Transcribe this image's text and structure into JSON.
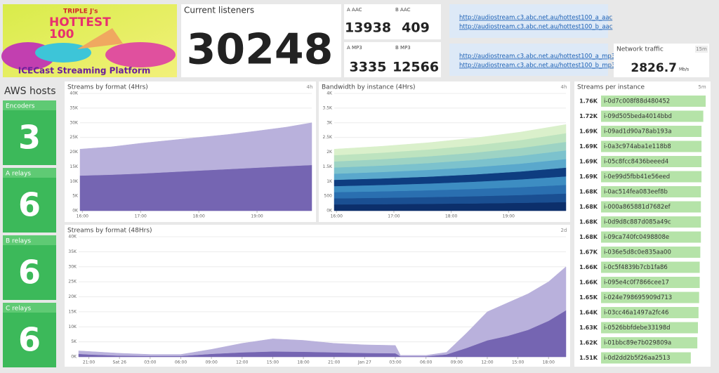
{
  "logo": {
    "lines": [
      "TRIPLE J's",
      "HOTTEST",
      "100"
    ],
    "subtitle": "ICECast Streaming Platform"
  },
  "current_listeners": {
    "title": "Current listeners",
    "value": 30248
  },
  "formats": [
    {
      "label": "A AAC",
      "value": 13938
    },
    {
      "label": "B AAC",
      "value": 409
    },
    {
      "label": "A MP3",
      "value": 3335
    },
    {
      "label": "B MP3",
      "value": 12566
    }
  ],
  "links": {
    "aac": [
      "http://audiostream.c3.abc.net.au/hottest100_a_aac",
      "http://audiostream.c3.abc.net.au/hottest100_b_aac"
    ],
    "mp3": [
      "http://audiostream.c3.abc.net.au/hottest100_a_mp3",
      "http://audiostream.c3.abc.net.au/hottest100_b_mp3"
    ]
  },
  "network": {
    "title": "Network traffic",
    "badge": "15m",
    "value": "2826.7",
    "unit": "Mb/s"
  },
  "aws": {
    "title": "AWS hosts",
    "groups": [
      {
        "label": "Encoders",
        "value": 3
      },
      {
        "label": "A relays",
        "value": 6
      },
      {
        "label": "B relays",
        "value": 6
      },
      {
        "label": "C relays",
        "value": 6
      }
    ]
  },
  "charts": {
    "streams_4h": {
      "type": "area",
      "title": "Streams by format (4Hrs)",
      "badge": "4h",
      "xlim": [
        15.96,
        19.94
      ],
      "xticks": [
        {
          "value": 16,
          "label": "16:00"
        },
        {
          "value": 17,
          "label": "17:00"
        },
        {
          "value": 18,
          "label": "18:00"
        },
        {
          "value": 19,
          "label": "19:00"
        }
      ],
      "ylim": [
        0,
        40000
      ],
      "yticks": [
        {
          "value": 0,
          "label": "0K"
        },
        {
          "value": 5000,
          "label": "5K"
        },
        {
          "value": 10000,
          "label": "10K"
        },
        {
          "value": 15000,
          "label": "15K"
        },
        {
          "value": 20000,
          "label": "20K"
        },
        {
          "value": 25000,
          "label": "25K"
        },
        {
          "value": 30000,
          "label": "30K"
        },
        {
          "value": 35000,
          "label": "35K"
        },
        {
          "value": 40000,
          "label": "40K"
        }
      ],
      "x": [
        15.96,
        16.5,
        17,
        17.5,
        18,
        18.5,
        19,
        19.5,
        19.94
      ],
      "series": [
        {
          "color": "#7565b2",
          "values": [
            12000,
            12300,
            12700,
            13200,
            13700,
            14200,
            14700,
            15200,
            15600
          ]
        },
        {
          "color": "#b9b1dc",
          "values": [
            9000,
            9500,
            10300,
            10800,
            11300,
            11800,
            12500,
            13300,
            14400
          ]
        }
      ]
    },
    "bandwidth_4h": {
      "type": "area",
      "title": "Bandwidth by instance (4Hrs)",
      "badge": "4h",
      "xlim": [
        15.96,
        20.0
      ],
      "xticks": [
        {
          "value": 16,
          "label": "16:00"
        },
        {
          "value": 17,
          "label": "17:00"
        },
        {
          "value": 18,
          "label": "18:00"
        },
        {
          "value": 19,
          "label": "19:00"
        }
      ],
      "ylim": [
        0,
        4000
      ],
      "yticks": [
        {
          "value": 0,
          "label": "0K"
        },
        500,
        {
          "value": 1000,
          "label": "1K"
        },
        {
          "value": 1500,
          "label": "1.5K"
        },
        {
          "value": 2000,
          "label": "2K"
        },
        {
          "value": 2500,
          "label": "2.5K"
        },
        {
          "value": 3000,
          "label": "3K"
        },
        {
          "value": 3500,
          "label": "3.5K"
        },
        {
          "value": 4000,
          "label": "4K"
        }
      ],
      "x": [
        15.96,
        16.8,
        17.6,
        18.4,
        19.2,
        20.0
      ],
      "series": [
        {
          "color": "#0c2f6b",
          "values": [
            215,
            224,
            236,
            250,
            270,
            296
          ]
        },
        {
          "color": "#1a4f92",
          "values": [
            208,
            218,
            230,
            246,
            266,
            292
          ]
        },
        {
          "color": "#2a6fb0",
          "values": [
            212,
            221,
            233,
            249,
            268,
            295
          ]
        },
        {
          "color": "#3d8dc2",
          "values": [
            206,
            217,
            229,
            245,
            265,
            290
          ]
        },
        {
          "color": "#0e3d80",
          "values": [
            214,
            223,
            235,
            250,
            270,
            297
          ]
        },
        {
          "color": "#5aa8cc",
          "values": [
            209,
            219,
            231,
            247,
            267,
            294
          ]
        },
        {
          "color": "#7cc2cd",
          "values": [
            211,
            220,
            232,
            248,
            268,
            295
          ]
        },
        {
          "color": "#9dd3c4",
          "values": [
            207,
            218,
            230,
            246,
            266,
            291
          ]
        },
        {
          "color": "#bde3bf",
          "values": [
            213,
            222,
            234,
            249,
            269,
            296
          ]
        },
        {
          "color": "#daf0cb",
          "values": [
            205,
            218,
            230,
            250,
            271,
            294
          ]
        }
      ]
    },
    "streams_48h": {
      "type": "area",
      "title": "Streams by format (48Hrs)",
      "badge": "2d",
      "xlim": [
        -1,
        46.7
      ],
      "xticks": [
        {
          "value": 0,
          "label": "21:00"
        },
        {
          "value": 3,
          "label": "Sat 26"
        },
        {
          "value": 6,
          "label": "03:00"
        },
        {
          "value": 9,
          "label": "06:00"
        },
        {
          "value": 12,
          "label": "09:00"
        },
        {
          "value": 15,
          "label": "12:00"
        },
        {
          "value": 18,
          "label": "15:00"
        },
        {
          "value": 21,
          "label": "18:00"
        },
        {
          "value": 24,
          "label": "21:00"
        },
        {
          "value": 27,
          "label": "Jan 27"
        },
        {
          "value": 30,
          "label": "03:00"
        },
        {
          "value": 33,
          "label": "06:00"
        },
        {
          "value": 36,
          "label": "09:00"
        },
        {
          "value": 39,
          "label": "12:00"
        },
        {
          "value": 42,
          "label": "15:00"
        },
        {
          "value": 45,
          "label": "18:00"
        }
      ],
      "ylim": [
        0,
        40000
      ],
      "yticks": [
        {
          "value": 0,
          "label": "0K"
        },
        {
          "value": 5000,
          "label": "5K"
        },
        {
          "value": 10000,
          "label": "10K"
        },
        {
          "value": 15000,
          "label": "15K"
        },
        {
          "value": 20000,
          "label": "20K"
        },
        {
          "value": 25000,
          "label": "25K"
        },
        {
          "value": 30000,
          "label": "30K"
        },
        {
          "value": 35000,
          "label": "35K"
        },
        {
          "value": 40000,
          "label": "40K"
        }
      ],
      "x": [
        -1,
        0,
        3,
        6,
        9,
        12,
        15,
        18,
        21,
        24,
        27,
        30,
        30.5,
        33,
        35,
        37,
        39,
        41,
        43,
        45,
        46.7
      ],
      "series": [
        {
          "color": "#7565b2",
          "values": [
            1000,
            800,
            400,
            300,
            300,
            1000,
            1500,
            1800,
            1700,
            1500,
            1300,
            1200,
            200,
            200,
            800,
            3000,
            5500,
            7000,
            9000,
            12000,
            15500
          ]
        },
        {
          "color": "#b9b1dc",
          "values": [
            1000,
            1000,
            800,
            500,
            500,
            1500,
            3000,
            4200,
            3800,
            3000,
            2700,
            2600,
            300,
            300,
            700,
            5000,
            9500,
            11000,
            12000,
            13000,
            14500
          ]
        }
      ]
    }
  },
  "instances": {
    "title": "Streams per instance",
    "badge": "5m",
    "values": [
      1760,
      1720,
      1690,
      1690,
      1690,
      1690,
      1680,
      1680,
      1680,
      1680,
      1670,
      1660,
      1660,
      1650,
      1640,
      1630,
      1620,
      1510
    ],
    "value_labels": [
      "1.76K",
      "1.72K",
      "1.69K",
      "1.69K",
      "1.69K",
      "1.69K",
      "1.68K",
      "1.68K",
      "1.68K",
      "1.68K",
      "1.67K",
      "1.66K",
      "1.66K",
      "1.65K",
      "1.64K",
      "1.63K",
      "1.62K",
      "1.51K"
    ],
    "categories": [
      "i-0d7c008f88d480452",
      "i-09d505beda4014bbd",
      "i-09ad1d90a78ab193a",
      "i-0a3c974aba1e118b8",
      "i-05c8fcc8436beeed4",
      "i-0e99d5fbb41e56eed",
      "i-0ac514fea083eef8b",
      "i-000a865881d7682ef",
      "i-0d9d8c887d085a49c",
      "i-09ca740fc0498808e",
      "i-036e5d8c0e835aa00",
      "i-0c5f4839b7cb1fa86",
      "i-095e4c0f7866cee17",
      "i-024e798695909d713",
      "i-03cc46a1497a2fc46",
      "i-0526bbfdebe33198d",
      "i-01bbc89e7b029809a",
      "i-0d2dd2b5f26aa2513"
    ]
  }
}
